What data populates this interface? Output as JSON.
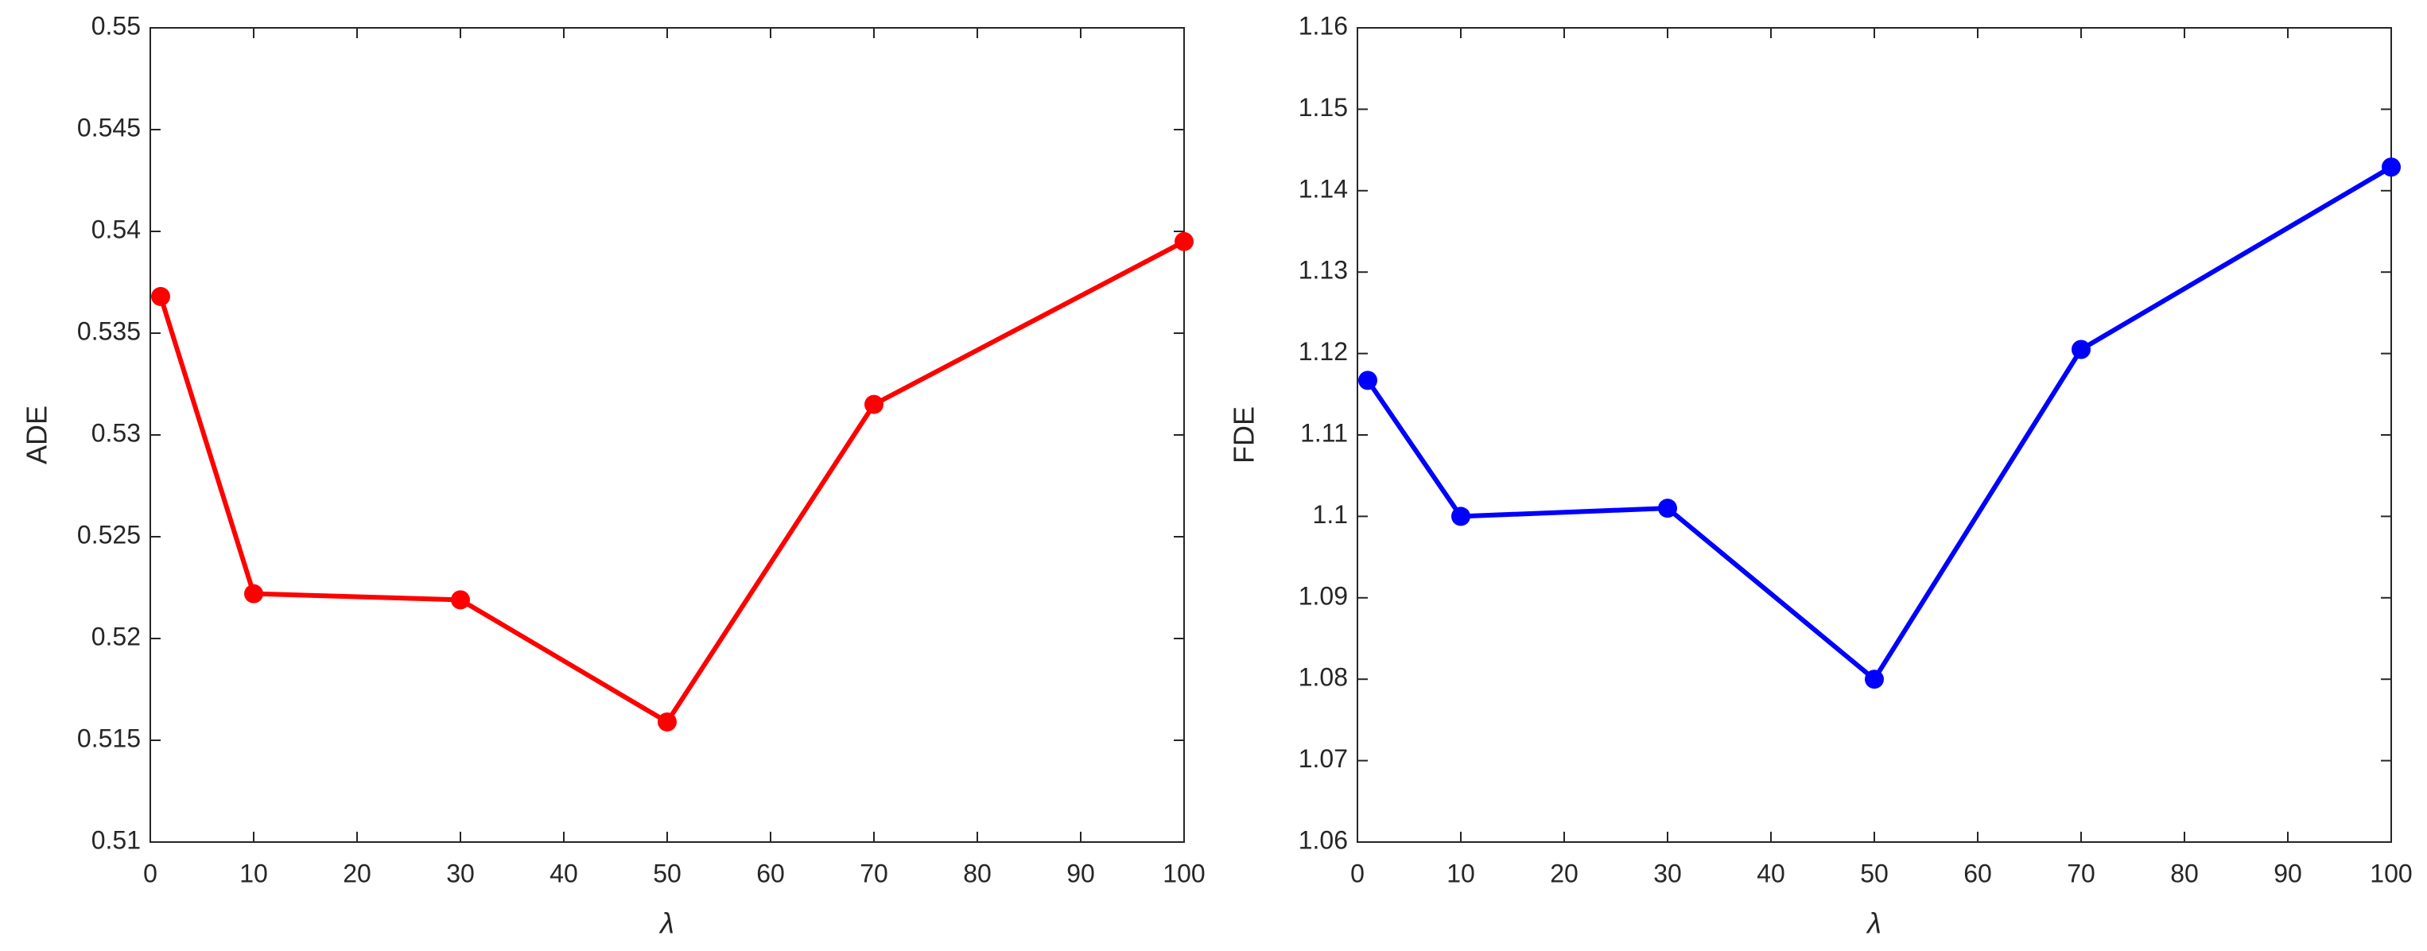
{
  "chart_data": [
    {
      "type": "line",
      "ylabel": "ADE",
      "xlabel": "λ",
      "x": [
        1,
        10,
        30,
        50,
        70,
        100
      ],
      "series": [
        {
          "color": "#ff0000",
          "values": [
            0.5368,
            0.5222,
            0.5219,
            0.5159,
            0.5315,
            0.5395
          ]
        }
      ],
      "xlim": [
        0,
        100
      ],
      "xticks": [
        0,
        10,
        20,
        30,
        40,
        50,
        60,
        70,
        80,
        90,
        100
      ],
      "ylim": [
        0.51,
        0.55
      ],
      "yticks": [
        0.51,
        0.515,
        0.52,
        0.525,
        0.53,
        0.535,
        0.54,
        0.545,
        0.55
      ],
      "grid": false
    },
    {
      "type": "line",
      "ylabel": "FDE",
      "xlabel": "λ",
      "x": [
        1,
        10,
        30,
        50,
        70,
        100
      ],
      "series": [
        {
          "color": "#0000ff",
          "values": [
            1.1167,
            1.1,
            1.101,
            1.08,
            1.1205,
            1.1429
          ]
        }
      ],
      "xlim": [
        0,
        100
      ],
      "xticks": [
        0,
        10,
        20,
        30,
        40,
        50,
        60,
        70,
        80,
        90,
        100
      ],
      "ylim": [
        1.06,
        1.16
      ],
      "yticks": [
        1.06,
        1.07,
        1.08,
        1.09,
        1.1,
        1.11,
        1.12,
        1.13,
        1.14,
        1.15,
        1.16
      ],
      "grid": false
    }
  ]
}
